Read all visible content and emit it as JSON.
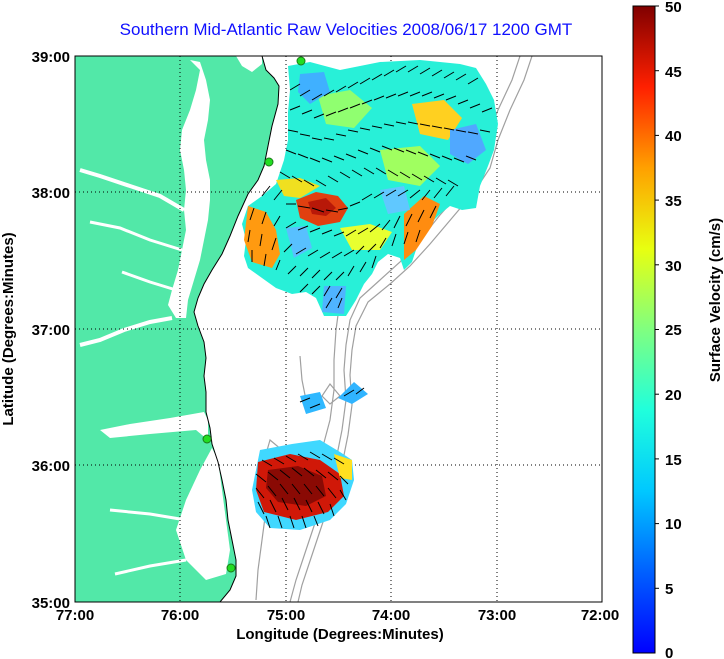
{
  "title": "Southern Mid-Atlantic Raw Velocities 2008/06/17 1200 GMT",
  "axes": {
    "xlabel": "Longitude (Degrees:Minutes)",
    "ylabel": "Latitude (Degrees:Minutes)",
    "x_ticks": [
      "77:00",
      "76:00",
      "75:00",
      "74:00",
      "73:00",
      "72:00"
    ],
    "y_ticks": [
      "39:00",
      "38:00",
      "37:00",
      "36:00",
      "35:00"
    ],
    "x_range": [
      -77,
      -72
    ],
    "y_range": [
      35,
      39
    ]
  },
  "colorbar": {
    "label": "Surface Velocity (cm/s)",
    "ticks": [
      "0",
      "5",
      "10",
      "15",
      "20",
      "25",
      "30",
      "35",
      "40",
      "45",
      "50"
    ],
    "range": [
      0,
      50
    ]
  },
  "colors": {
    "land": "#52e8a8",
    "title": "#1010ff",
    "bathymetry": "#a0a0a0",
    "station": "#22dd22"
  },
  "stations": [
    {
      "lon": -74.86,
      "lat": 38.93
    },
    {
      "lon": -75.14,
      "lat": 38.21
    },
    {
      "lon": -75.26,
      "lat": 36.2
    },
    {
      "lon": -75.47,
      "lat": 35.25
    }
  ]
}
